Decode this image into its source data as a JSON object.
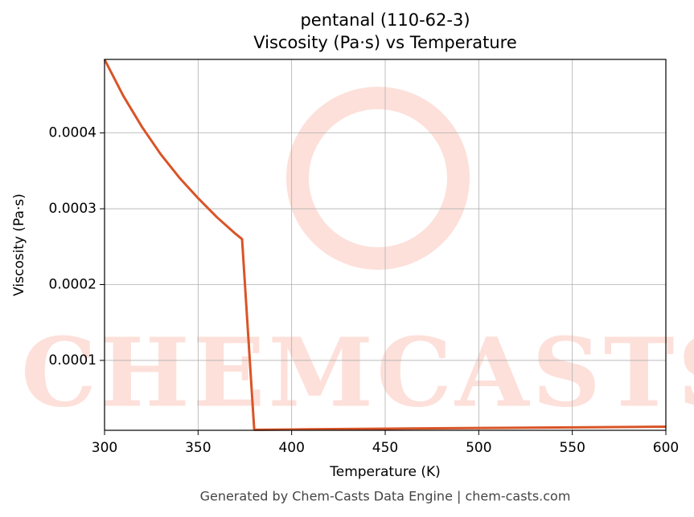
{
  "chart_data": {
    "type": "line",
    "title": "pentanal (110-62-3)",
    "subtitle": "Viscosity (Pa·s) vs Temperature",
    "xlabel": "Temperature (K)",
    "ylabel": "Viscosity (Pa·s)",
    "footer": "Generated by Chem-Casts Data Engine | chem-casts.com",
    "watermark": "CHEMCASTS",
    "x": [
      300,
      310,
      320,
      330,
      340,
      350,
      360,
      370,
      373.5,
      380,
      400,
      450,
      500,
      550,
      600
    ],
    "series": [
      {
        "name": "Viscosity",
        "color": "#d95427",
        "values": [
          0.000497,
          0.000449,
          0.000408,
          0.000372,
          0.000341,
          0.000314,
          0.000289,
          0.000267,
          0.00026,
          8.5e-06,
          8.9e-06,
          9.9e-06,
          1.08e-05,
          1.17e-05,
          1.26e-05
        ]
      }
    ],
    "xlim": [
      300,
      600
    ],
    "xticks": [
      300,
      350,
      400,
      450,
      500,
      550,
      600
    ],
    "ylim": [
      7.8e-06,
      0.000497
    ],
    "yticks": [
      0.0001,
      0.0002,
      0.0003,
      0.0004
    ],
    "grid": true
  }
}
